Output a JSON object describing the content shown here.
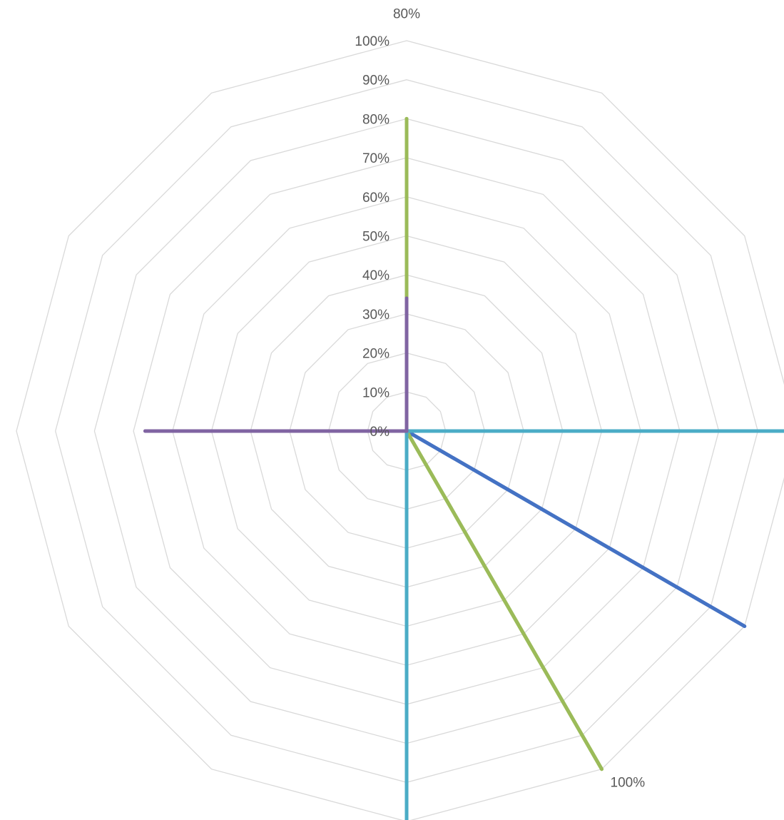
{
  "chart_data": {
    "type": "radar",
    "axis_count": 12,
    "rlim": [
      0,
      1
    ],
    "radial_ticks": [
      "0%",
      "10%",
      "20%",
      "30%",
      "40%",
      "50%",
      "60%",
      "70%",
      "80%",
      "90%",
      "100%"
    ],
    "grid": true,
    "legend": "none",
    "series": [
      {
        "color": "#4472c4",
        "values": [
          0,
          0,
          0,
          0,
          1,
          0,
          0,
          0,
          0,
          0,
          0,
          0
        ]
      },
      {
        "color": "#9bbb59",
        "values": [
          0.8,
          0,
          0,
          0,
          0,
          1,
          0,
          0,
          0,
          0,
          0,
          0
        ]
      },
      {
        "color": "#4bacc6",
        "values": [
          0,
          0,
          0,
          1,
          0,
          0,
          1,
          0,
          0,
          0,
          0,
          0
        ]
      },
      {
        "color": "#8064a2",
        "values": [
          0.34,
          0,
          0,
          0,
          0,
          0,
          0,
          0,
          0,
          0.67,
          0,
          0
        ]
      }
    ],
    "data_labels": [
      {
        "series": 1,
        "axis": 0,
        "text": "80%"
      },
      {
        "series": 1,
        "axis": 5,
        "text": "100%"
      }
    ]
  }
}
